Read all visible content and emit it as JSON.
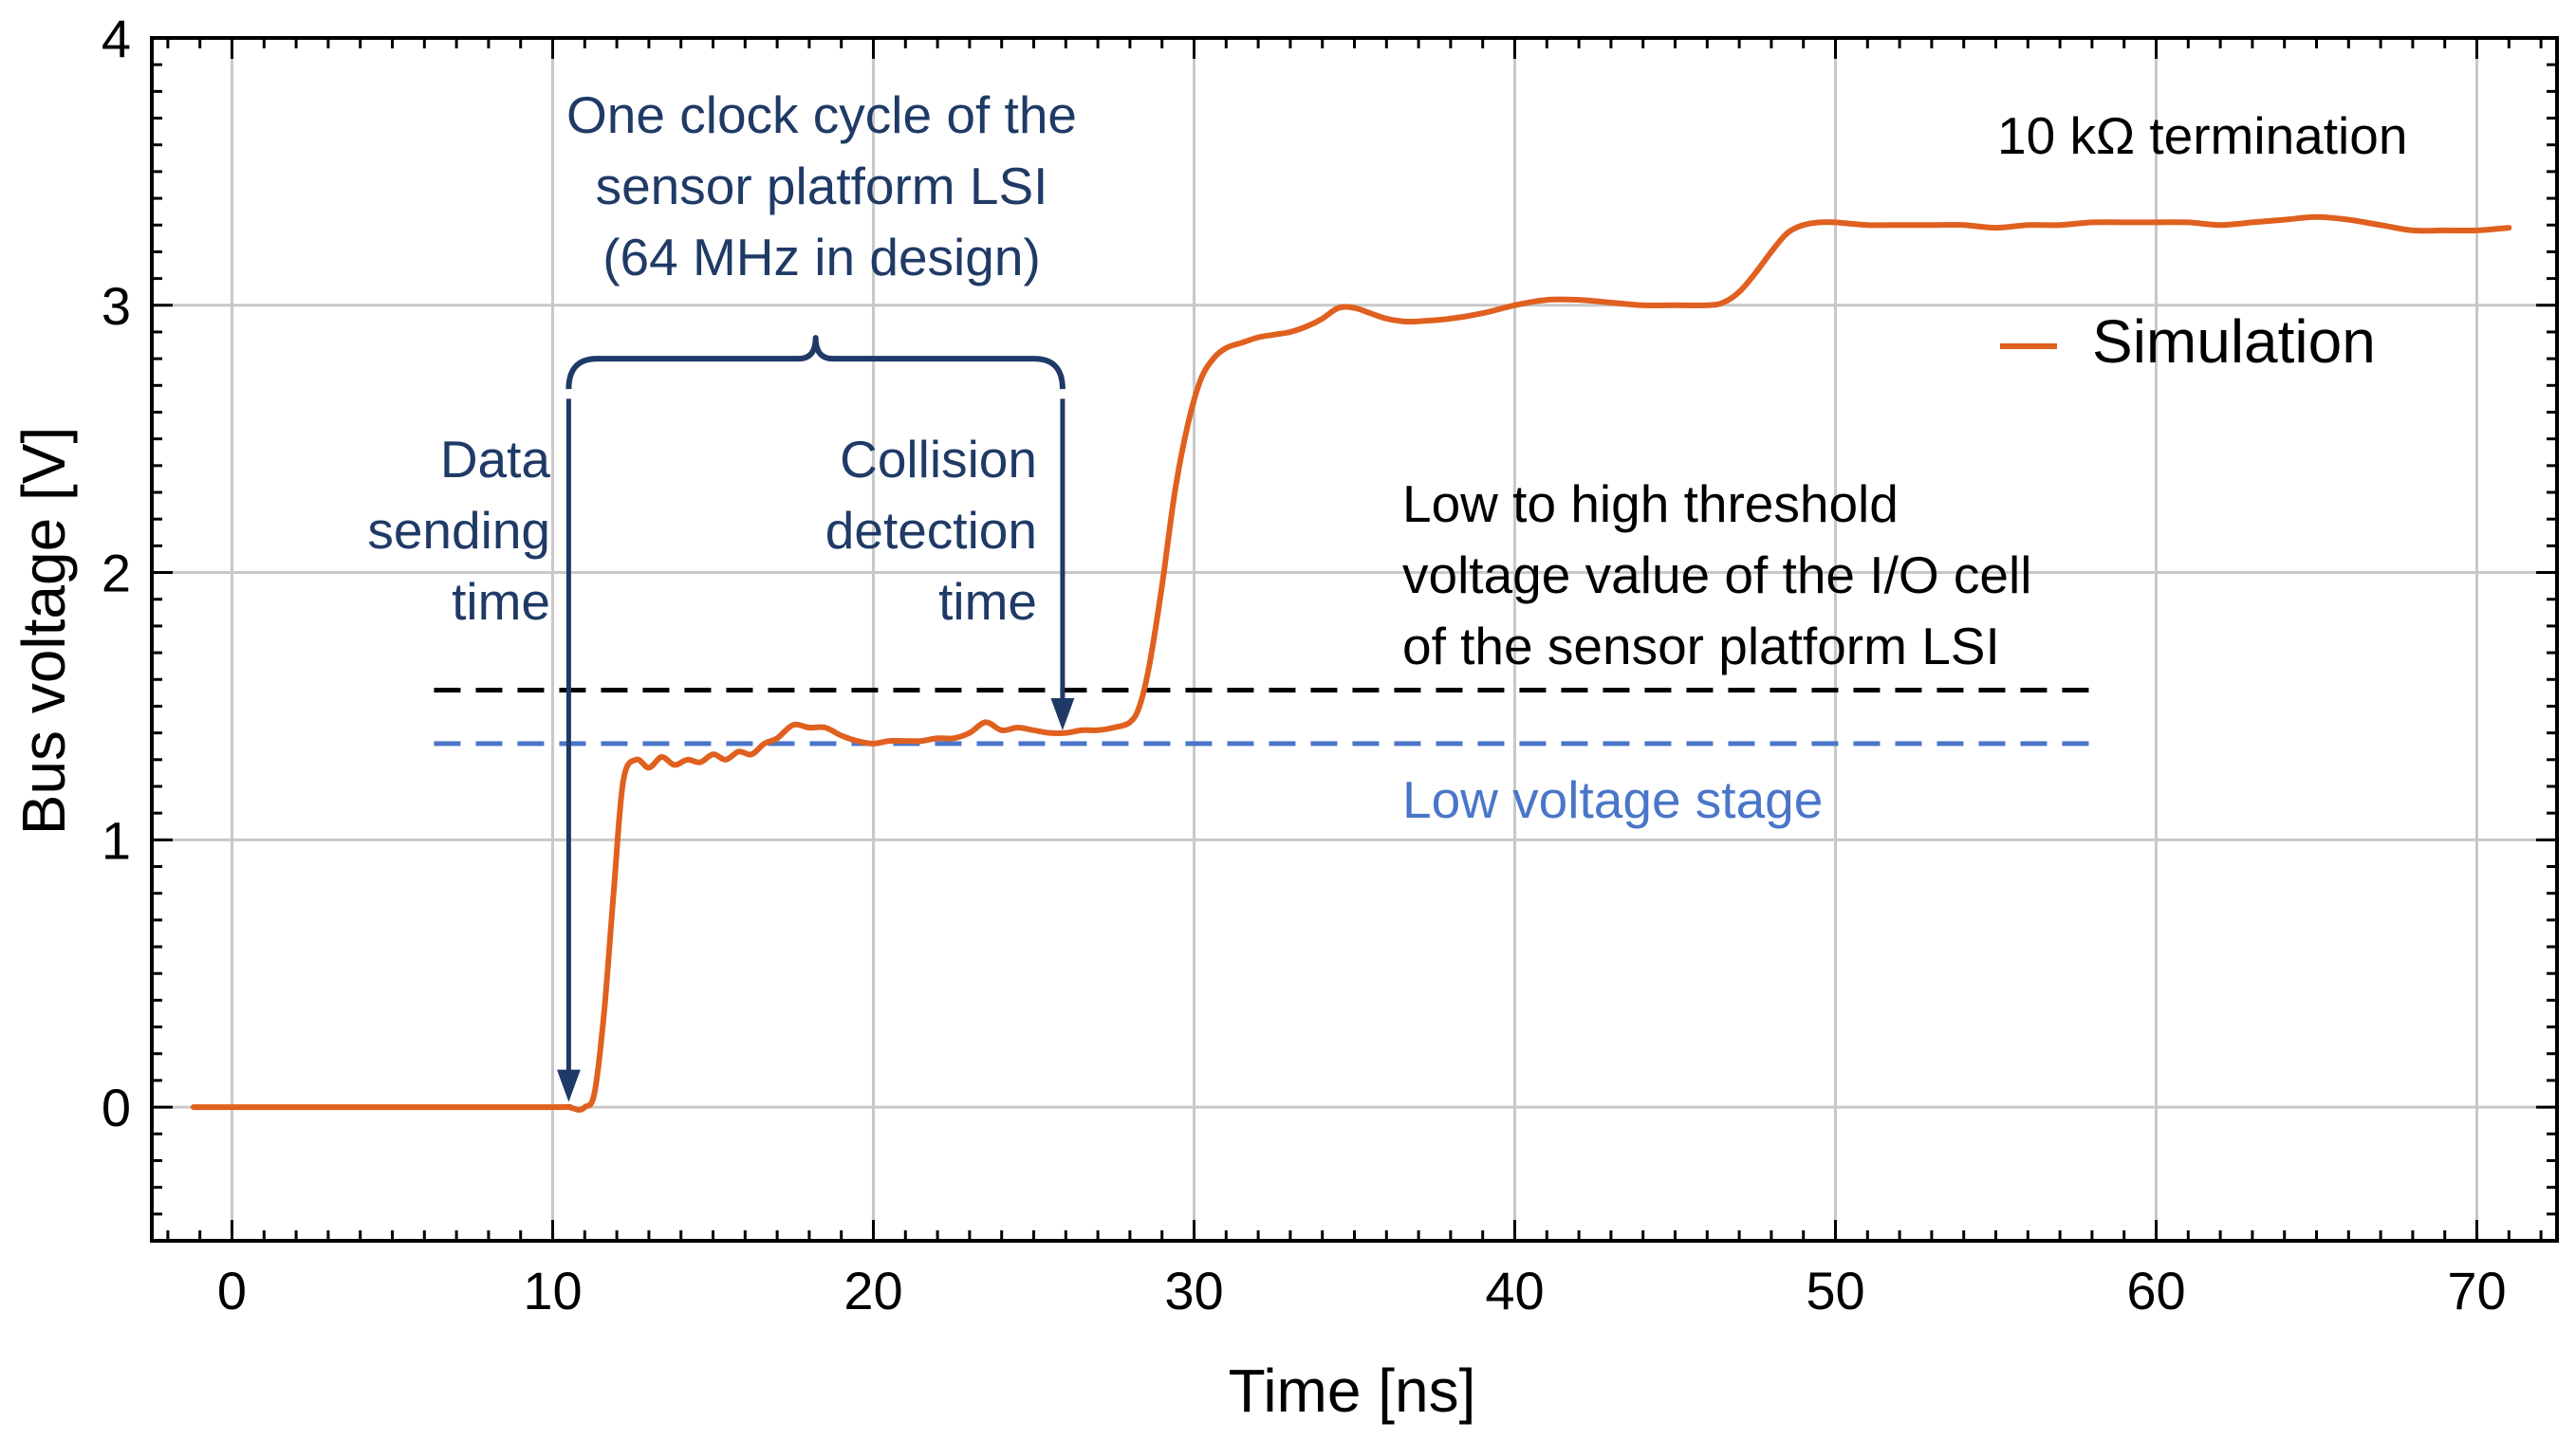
{
  "chart_data": {
    "type": "line",
    "title": "",
    "xlabel": "Time [ns]",
    "ylabel": "Bus voltage [V]",
    "xlim": [
      -2.5,
      72.5
    ],
    "ylim": [
      -0.5,
      4
    ],
    "xticks": [
      0,
      10,
      20,
      30,
      40,
      50,
      60,
      70
    ],
    "yticks": [
      0,
      1,
      2,
      3,
      4
    ],
    "xtick_labels": [
      "0",
      "10",
      "20",
      "30",
      "40",
      "50",
      "60",
      "70"
    ],
    "ytick_labels": [
      "0",
      "1",
      "2",
      "3",
      "4"
    ],
    "grid": true,
    "legend": {
      "position": "top-right",
      "entries": [
        {
          "name": "Simulation",
          "color": "#e0601f"
        }
      ]
    },
    "series": [
      {
        "name": "Simulation",
        "color": "#e0601f",
        "x": [
          -1.2,
          0,
          5,
          10,
          10.5,
          10.8,
          11.0,
          11.3,
          11.6,
          11.9,
          12.2,
          12.6,
          13.0,
          13.4,
          13.8,
          14.2,
          14.6,
          15.0,
          15.4,
          15.8,
          16.2,
          16.6,
          17.0,
          17.5,
          18.0,
          18.5,
          19.0,
          19.5,
          20.0,
          20.5,
          21.0,
          21.5,
          22.0,
          22.5,
          23.0,
          23.5,
          24.0,
          24.5,
          25.0,
          25.5,
          26.0,
          26.5,
          27.0,
          27.5,
          28.0,
          28.3,
          28.6,
          29.0,
          29.4,
          29.8,
          30.2,
          30.6,
          31.0,
          31.5,
          32.0,
          32.5,
          33.0,
          33.5,
          34.0,
          34.5,
          35.0,
          35.5,
          36.0,
          36.5,
          37.0,
          38.0,
          39.0,
          40.0,
          41.0,
          42.0,
          43.0,
          44.0,
          45.0,
          46.0,
          46.5,
          47.0,
          47.5,
          48.0,
          48.5,
          49.0,
          49.5,
          50.0,
          51.0,
          52.0,
          53.0,
          54.0,
          55.0,
          56.0,
          57.0,
          58.0,
          59.0,
          60.0,
          61.0,
          62.0,
          63.0,
          64.0,
          65.0,
          66.0,
          67.0,
          68.0,
          69.0,
          70.0,
          71.0
        ],
        "y": [
          0,
          0,
          0,
          0,
          0,
          -0.01,
          0,
          0.05,
          0.35,
          0.8,
          1.22,
          1.3,
          1.27,
          1.31,
          1.28,
          1.3,
          1.29,
          1.32,
          1.3,
          1.33,
          1.32,
          1.36,
          1.38,
          1.43,
          1.42,
          1.42,
          1.39,
          1.37,
          1.36,
          1.37,
          1.37,
          1.37,
          1.38,
          1.38,
          1.4,
          1.44,
          1.41,
          1.42,
          1.41,
          1.4,
          1.4,
          1.41,
          1.41,
          1.42,
          1.44,
          1.5,
          1.65,
          1.95,
          2.3,
          2.55,
          2.72,
          2.8,
          2.84,
          2.86,
          2.88,
          2.89,
          2.9,
          2.92,
          2.95,
          2.99,
          2.99,
          2.97,
          2.95,
          2.94,
          2.94,
          2.95,
          2.97,
          3.0,
          3.02,
          3.02,
          3.01,
          3.0,
          3.0,
          3.0,
          3.01,
          3.05,
          3.12,
          3.2,
          3.27,
          3.3,
          3.31,
          3.31,
          3.3,
          3.3,
          3.3,
          3.3,
          3.29,
          3.3,
          3.3,
          3.31,
          3.31,
          3.31,
          3.31,
          3.3,
          3.31,
          3.32,
          3.33,
          3.32,
          3.3,
          3.28,
          3.28,
          3.28,
          3.29
        ]
      }
    ],
    "reference_lines": [
      {
        "name": "Low to high threshold",
        "y": 1.56,
        "x_range": [
          6.3,
          58
        ],
        "color": "#000000",
        "style": "dashed"
      },
      {
        "name": "Low voltage stage",
        "y": 1.36,
        "x_range": [
          6.3,
          58
        ],
        "color": "#4a76c9",
        "style": "dashed"
      }
    ],
    "annotations": {
      "termination": "10 kΩ termination",
      "clock_cycle": [
        "One clock cycle of the",
        "sensor platform LSI",
        "(64 MHz in design)"
      ],
      "data_sending": [
        "Data",
        "sending",
        "time"
      ],
      "collision_detection": [
        "Collision",
        "detection",
        "time"
      ],
      "threshold": [
        "Low to high threshold",
        "voltage value of the I/O cell",
        "of the sensor platform LSI"
      ],
      "low_stage": "Low voltage stage",
      "brace_x_range": [
        10.5,
        25.9
      ],
      "brace_y": 2.8,
      "arrow_data_sending": {
        "x": 10.5,
        "y_from": 2.65,
        "y_to": 0.03
      },
      "arrow_collision": {
        "x": 25.9,
        "y_from": 2.65,
        "y_to": 1.42
      }
    },
    "colors": {
      "series": "#e0601f",
      "annotation_dark": "#1f3a66",
      "low_stage": "#4a76c9",
      "threshold": "#000000",
      "grid": "#c8c8c8"
    }
  }
}
